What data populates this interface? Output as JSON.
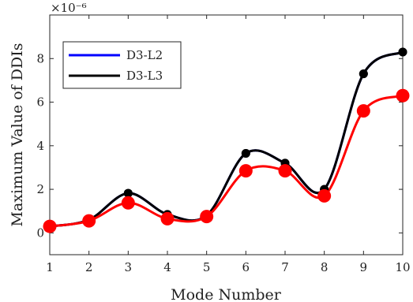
{
  "chart_data": {
    "type": "line",
    "xlabel": "Mode Number",
    "ylabel": "Maximum Value of DDIs",
    "y_exponent_label": "×10⁻⁶",
    "x": [
      1,
      2,
      3,
      4,
      5,
      6,
      7,
      8,
      9,
      10
    ],
    "xlim": [
      1,
      10
    ],
    "ylim": [
      -1,
      10
    ],
    "yticks": [
      0,
      2,
      4,
      6,
      8
    ],
    "grid": false,
    "legend": "top-left",
    "series": [
      {
        "name": "D3-L2",
        "color": "#0000ff",
        "marker_color": "#000000",
        "values": [
          0.3,
          0.6,
          1.82,
          0.85,
          0.8,
          3.65,
          3.2,
          2.0,
          7.3,
          8.3
        ]
      },
      {
        "name": "D3-L3",
        "color": "#000000",
        "marker_color": "#000000",
        "values": [
          0.3,
          0.6,
          1.82,
          0.85,
          0.8,
          3.65,
          3.2,
          2.0,
          7.3,
          8.3
        ]
      },
      {
        "name": "",
        "color": "#ff0000",
        "marker_color": "#ff0000",
        "values": [
          0.3,
          0.55,
          1.38,
          0.65,
          0.75,
          2.85,
          2.85,
          1.7,
          5.6,
          6.3
        ]
      }
    ]
  }
}
